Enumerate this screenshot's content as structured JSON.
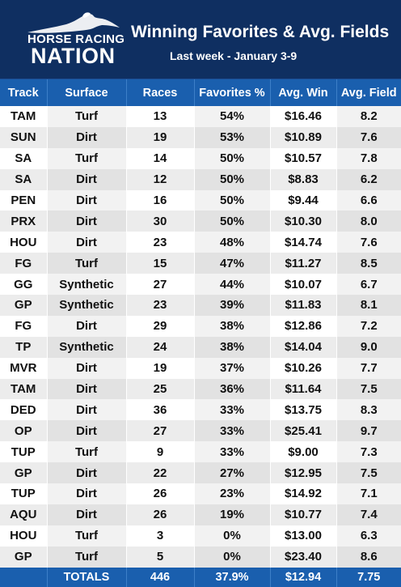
{
  "header": {
    "logo_line1": "HORSE RACING",
    "logo_line2": "NATION",
    "title": "Winning Favorites & Avg. Fields",
    "subtitle": "Last week - January 3-9"
  },
  "colors": {
    "header_bg": "#0f2f61",
    "table_header_bg": "#1a5fae",
    "row_alt": "#ececec",
    "text": "#111111"
  },
  "table": {
    "columns": [
      "Track",
      "Surface",
      "Races",
      "Favorites %",
      "Avg. Win",
      "Avg. Field"
    ],
    "rows": [
      [
        "TAM",
        "Turf",
        "13",
        "54%",
        "$16.46",
        "8.2"
      ],
      [
        "SUN",
        "Dirt",
        "19",
        "53%",
        "$10.89",
        "7.6"
      ],
      [
        "SA",
        "Turf",
        "14",
        "50%",
        "$10.57",
        "7.8"
      ],
      [
        "SA",
        "Dirt",
        "12",
        "50%",
        "$8.83",
        "6.2"
      ],
      [
        "PEN",
        "Dirt",
        "16",
        "50%",
        "$9.44",
        "6.6"
      ],
      [
        "PRX",
        "Dirt",
        "30",
        "50%",
        "$10.30",
        "8.0"
      ],
      [
        "HOU",
        "Dirt",
        "23",
        "48%",
        "$14.74",
        "7.6"
      ],
      [
        "FG",
        "Turf",
        "15",
        "47%",
        "$11.27",
        "8.5"
      ],
      [
        "GG",
        "Synthetic",
        "27",
        "44%",
        "$10.07",
        "6.7"
      ],
      [
        "GP",
        "Synthetic",
        "23",
        "39%",
        "$11.83",
        "8.1"
      ],
      [
        "FG",
        "Dirt",
        "29",
        "38%",
        "$12.86",
        "7.2"
      ],
      [
        "TP",
        "Synthetic",
        "24",
        "38%",
        "$14.04",
        "9.0"
      ],
      [
        "MVR",
        "Dirt",
        "19",
        "37%",
        "$10.26",
        "7.7"
      ],
      [
        "TAM",
        "Dirt",
        "25",
        "36%",
        "$11.64",
        "7.5"
      ],
      [
        "DED",
        "Dirt",
        "36",
        "33%",
        "$13.75",
        "8.3"
      ],
      [
        "OP",
        "Dirt",
        "27",
        "33%",
        "$25.41",
        "9.7"
      ],
      [
        "TUP",
        "Turf",
        "9",
        "33%",
        "$9.00",
        "7.3"
      ],
      [
        "GP",
        "Dirt",
        "22",
        "27%",
        "$12.95",
        "7.5"
      ],
      [
        "TUP",
        "Dirt",
        "26",
        "23%",
        "$14.92",
        "7.1"
      ],
      [
        "AQU",
        "Dirt",
        "26",
        "19%",
        "$10.77",
        "7.4"
      ],
      [
        "HOU",
        "Turf",
        "3",
        "0%",
        "$13.00",
        "6.3"
      ],
      [
        "GP",
        "Turf",
        "5",
        "0%",
        "$23.40",
        "8.6"
      ]
    ],
    "totals": [
      "",
      "TOTALS",
      "446",
      "37.9%",
      "$12.94",
      "7.75"
    ]
  }
}
